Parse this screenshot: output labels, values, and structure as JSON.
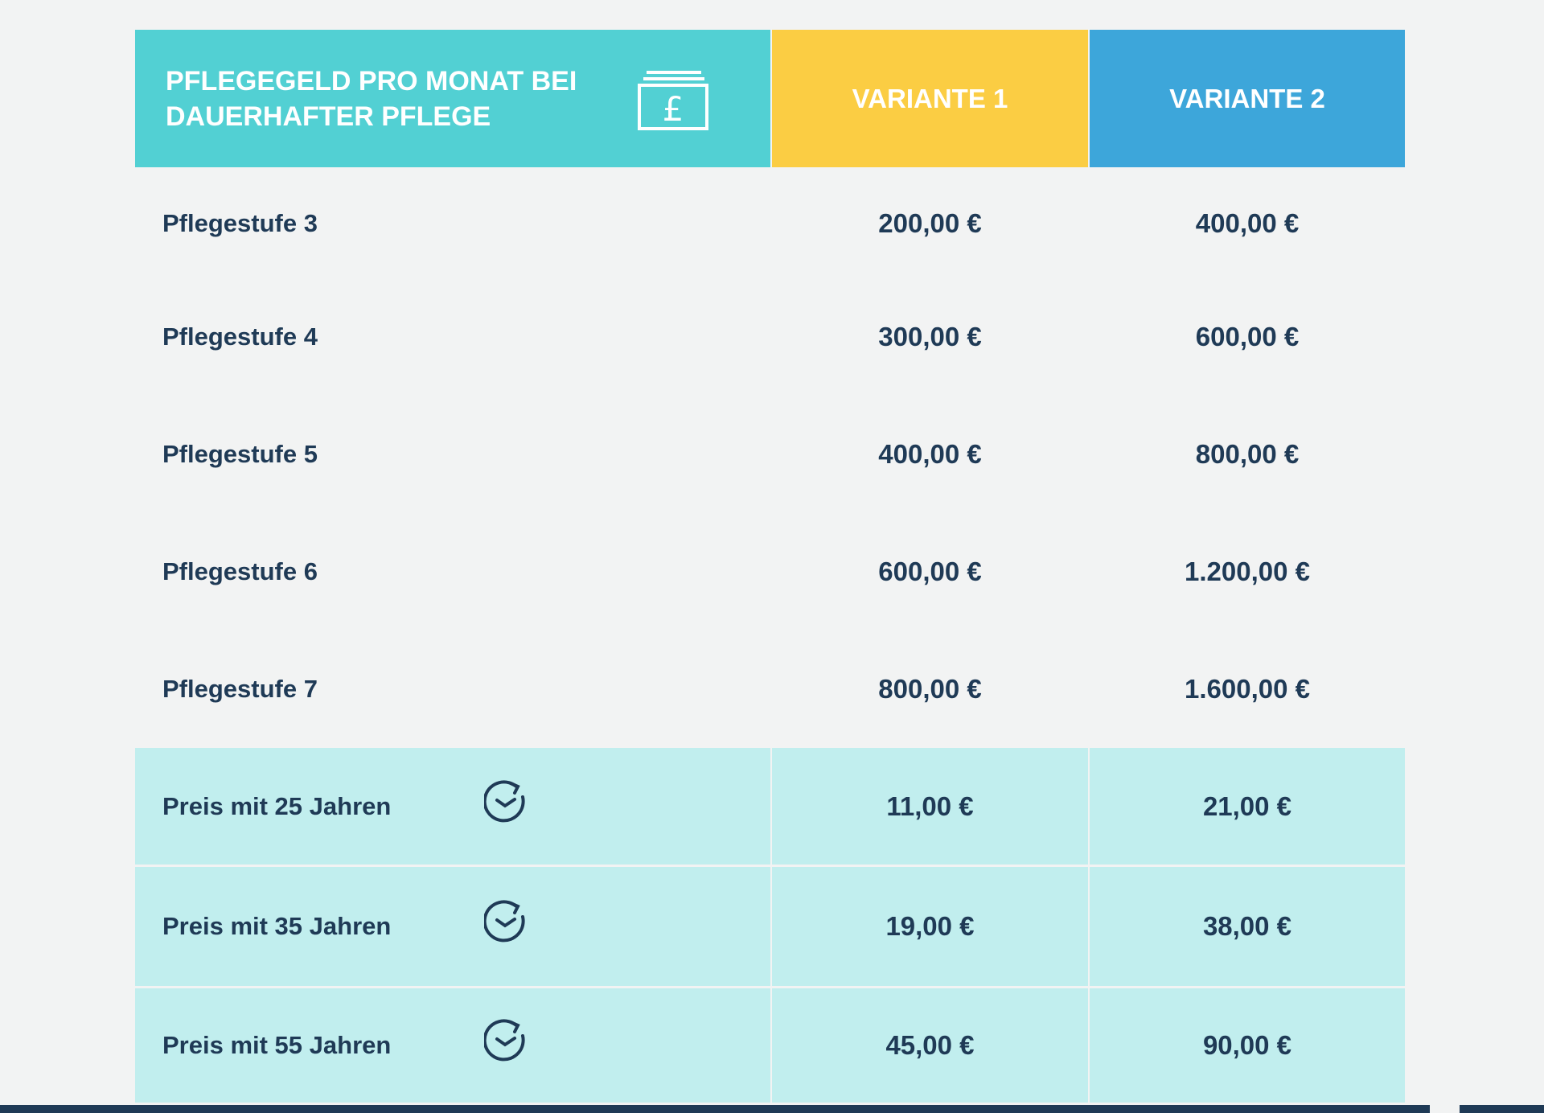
{
  "table": {
    "header": {
      "title_line1": "PFLEGEGELD PRO MONAT BEI",
      "title_line2": "DAUERHAFTER PFLEGE",
      "variant1": "VARIANTE 1",
      "variant2": "VARIANTE 2"
    },
    "rows": [
      [
        "Pflegestufe 3",
        "200,00 €",
        "400,00 €"
      ],
      [
        "Pflegestufe 4",
        "300,00 €",
        "600,00 €"
      ],
      [
        "Pflegestufe 5",
        "400,00 €",
        "800,00 €"
      ],
      [
        "Pflegestufe 6",
        "600,00 €",
        "1.200,00 €"
      ],
      [
        "Pflegestufe 7",
        "800,00 €",
        "1.600,00 €"
      ]
    ],
    "price_rows": [
      [
        "Preis mit 25 Jahren",
        "11,00 €",
        "21,00 €"
      ],
      [
        "Preis mit 35 Jahren",
        "19,00 €",
        "38,00 €"
      ],
      [
        "Preis mit 55 Jahren",
        "45,00 €",
        "90,00 €"
      ]
    ]
  }
}
